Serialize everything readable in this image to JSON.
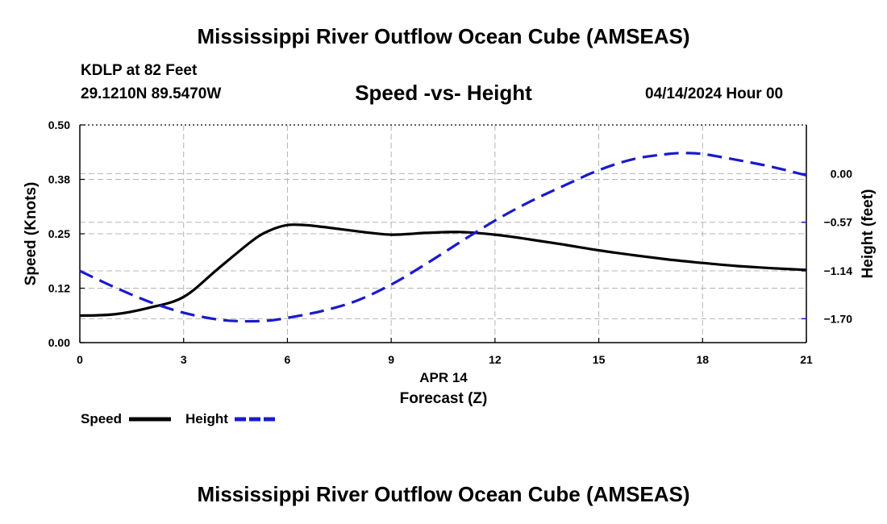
{
  "header": {
    "title": "Mississippi River Outflow Ocean Cube (AMSEAS)",
    "station": "KDLP at 82 Feet",
    "coordinates": "29.1210N  89.5470W",
    "subtitle": "Speed -vs- Height",
    "datetime": "04/14/2024 Hour 00"
  },
  "footer": {
    "title": "Mississippi River Outflow Ocean Cube (AMSEAS)"
  },
  "chart_data": {
    "type": "line",
    "title": "Speed -vs- Height",
    "xlabel": "Forecast (Z)",
    "xlabel_date": "APR 14",
    "ylabel": "Speed (Knots)",
    "y2label": "Height (feet)",
    "xlim": [
      0,
      21
    ],
    "ylim": [
      0,
      0.5
    ],
    "y2lim": [
      -1.98,
      0.57
    ],
    "x_ticks": [
      0,
      3,
      6,
      9,
      12,
      15,
      18,
      21
    ],
    "x_tick_labels": [
      "0",
      "3",
      "6",
      "9",
      "12",
      "15",
      "18",
      "21"
    ],
    "y_ticks": [
      0.0,
      0.125,
      0.25,
      0.375,
      0.5
    ],
    "y_tick_labels": [
      "0.00",
      "0.12",
      "0.25",
      "0.38",
      "0.50"
    ],
    "y2_ticks": [
      -1.7,
      -1.14,
      -0.57,
      0.0
    ],
    "y2_tick_labels": [
      "−1.70",
      "−1.14",
      "−0.57",
      "0.00"
    ],
    "grid": true,
    "series": [
      {
        "name": "Speed",
        "axis": "left",
        "color": "#000000",
        "dash": "solid",
        "x": [
          0,
          1,
          2,
          3,
          4,
          5,
          5.5,
          6,
          6.5,
          7,
          8,
          9,
          10,
          11,
          12,
          13,
          14,
          15,
          16,
          17,
          18,
          19,
          20,
          21
        ],
        "values": [
          0.062,
          0.065,
          0.08,
          0.105,
          0.17,
          0.235,
          0.258,
          0.27,
          0.27,
          0.266,
          0.256,
          0.248,
          0.252,
          0.254,
          0.248,
          0.237,
          0.225,
          0.212,
          0.201,
          0.191,
          0.183,
          0.176,
          0.171,
          0.167
        ]
      },
      {
        "name": "Height",
        "axis": "right",
        "color": "#1a1acc",
        "dash": "dashed",
        "x": [
          0,
          1,
          2,
          3,
          4,
          4.8,
          5.5,
          6,
          7,
          8,
          9,
          10,
          11,
          12,
          13,
          14,
          15,
          16,
          17,
          17.5,
          18,
          19,
          20,
          21
        ],
        "values": [
          -1.14,
          -1.33,
          -1.5,
          -1.63,
          -1.71,
          -1.73,
          -1.72,
          -1.69,
          -1.61,
          -1.49,
          -1.3,
          -1.06,
          -0.8,
          -0.55,
          -0.33,
          -0.14,
          0.04,
          0.17,
          0.23,
          0.24,
          0.23,
          0.16,
          0.08,
          -0.02
        ]
      }
    ],
    "legend": {
      "placement": "bottom-left",
      "entries": [
        "Speed",
        "Height"
      ]
    }
  }
}
